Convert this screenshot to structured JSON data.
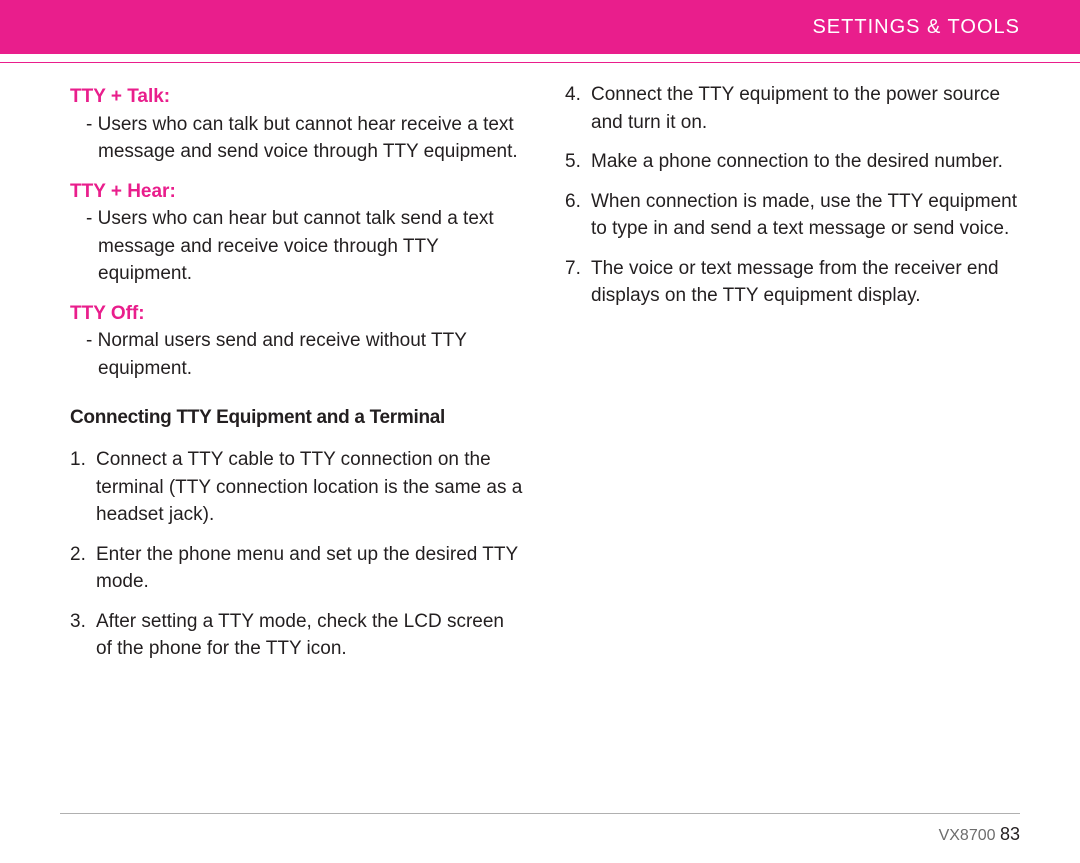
{
  "header": {
    "title": "SETTINGS & TOOLS",
    "background_color": "#e91e8c",
    "text_color": "#ffffff"
  },
  "accent_color": "#e91e8c",
  "text_color": "#231f20",
  "left_column": {
    "modes": [
      {
        "title": "TTY + Talk:",
        "desc": "- Users who can talk but cannot hear receive a text message and send voice through TTY equipment."
      },
      {
        "title": "TTY + Hear:",
        "desc": "- Users who can hear but cannot talk send a text message and receive voice through TTY equipment."
      },
      {
        "title": "TTY Off:",
        "desc": "- Normal users send and receive without TTY equipment."
      }
    ],
    "section_heading": "Connecting TTY Equipment and a Terminal",
    "steps": [
      {
        "num": "1.",
        "text": "Connect a TTY cable to TTY connection on the terminal (TTY connection location is the same as a headset jack)."
      },
      {
        "num": "2.",
        "text": "Enter the phone menu and set up the desired TTY mode."
      },
      {
        "num": "3.",
        "text": "After setting a TTY mode, check the LCD screen of the phone for the TTY icon."
      }
    ]
  },
  "right_column": {
    "steps": [
      {
        "num": "4.",
        "text": "Connect the TTY equipment to the power source and turn it on."
      },
      {
        "num": "5.",
        "text": "Make a phone connection to the desired number."
      },
      {
        "num": "6.",
        "text": "When connection is made, use the TTY equipment to type in and send a text message or send voice."
      },
      {
        "num": "7.",
        "text": "The voice or text message from the receiver end displays on the TTY equipment display."
      }
    ]
  },
  "footer": {
    "model": "VX8700",
    "page": "83"
  }
}
